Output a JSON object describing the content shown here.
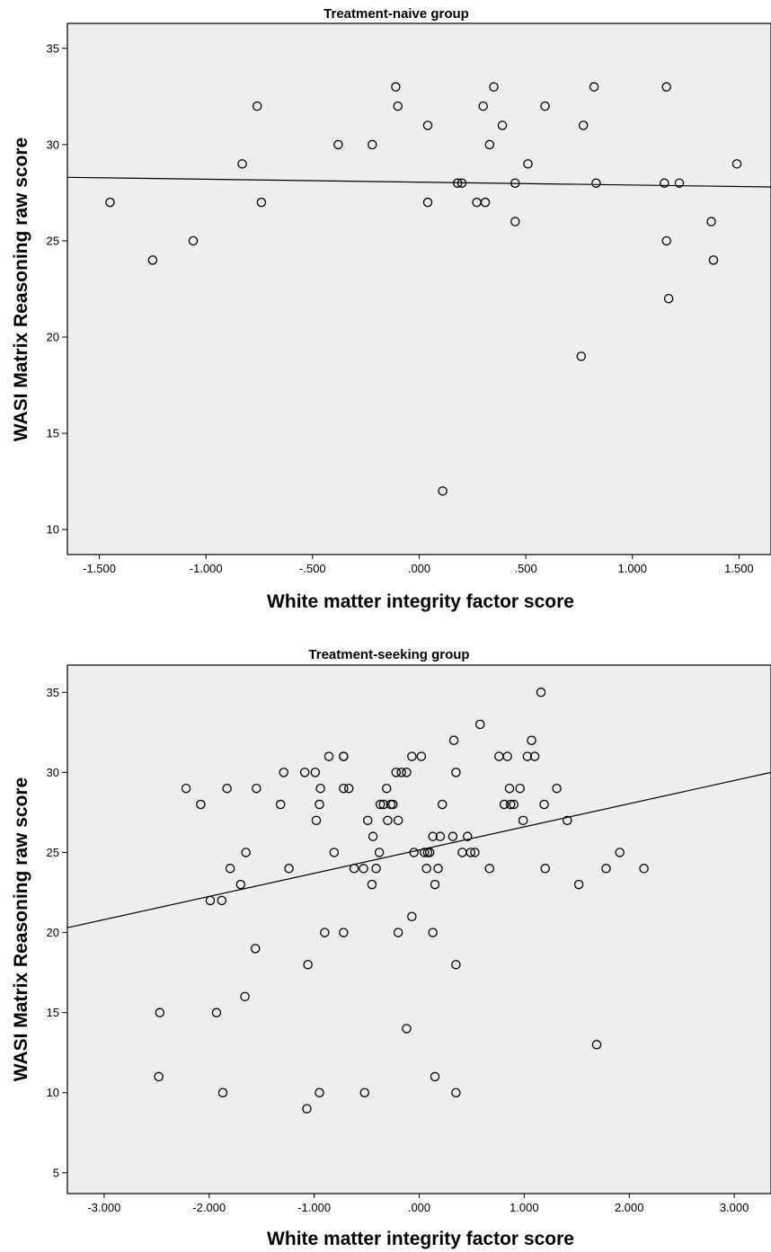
{
  "chart_data": [
    {
      "type": "scatter",
      "title": "Treatment-naive group",
      "xlabel": "White matter integrity factor score",
      "ylabel": "WASI Matrix Reasoning raw score",
      "xlim": [
        -1.65,
        1.65
      ],
      "ylim": [
        8.7,
        36.3
      ],
      "x_ticks": [
        -1.5,
        -1.0,
        -0.5,
        0.0,
        0.5,
        1.0,
        1.5
      ],
      "x_tick_labels": [
        "-1.500",
        "-1.000",
        "-.500",
        ".000",
        ".500",
        "1.000",
        "1.500"
      ],
      "y_ticks": [
        10,
        15,
        20,
        25,
        30,
        35
      ],
      "y_tick_labels": [
        "10",
        "15",
        "20",
        "25",
        "30",
        "35"
      ],
      "fit_line": {
        "x": [
          -1.65,
          1.65
        ],
        "y": [
          28.3,
          27.8
        ]
      },
      "points": [
        [
          -1.45,
          27
        ],
        [
          -1.25,
          24
        ],
        [
          -1.06,
          25
        ],
        [
          -0.83,
          29
        ],
        [
          -0.76,
          32
        ],
        [
          -0.74,
          27
        ],
        [
          -0.38,
          30
        ],
        [
          -0.22,
          30
        ],
        [
          -0.11,
          33
        ],
        [
          -0.1,
          32
        ],
        [
          0.04,
          31
        ],
        [
          0.04,
          27
        ],
        [
          0.11,
          12
        ],
        [
          0.18,
          28
        ],
        [
          0.2,
          28
        ],
        [
          0.27,
          27
        ],
        [
          0.3,
          32
        ],
        [
          0.31,
          27
        ],
        [
          0.33,
          30
        ],
        [
          0.35,
          33
        ],
        [
          0.39,
          31
        ],
        [
          0.45,
          28
        ],
        [
          0.45,
          26
        ],
        [
          0.51,
          29
        ],
        [
          0.59,
          32
        ],
        [
          0.76,
          19
        ],
        [
          0.77,
          31
        ],
        [
          0.82,
          33
        ],
        [
          0.83,
          28
        ],
        [
          1.15,
          28
        ],
        [
          1.16,
          33
        ],
        [
          1.16,
          25
        ],
        [
          1.17,
          22
        ],
        [
          1.22,
          28
        ],
        [
          1.37,
          26
        ],
        [
          1.38,
          24
        ],
        [
          1.49,
          29
        ]
      ]
    },
    {
      "type": "scatter",
      "title": "Treatment-seeking group",
      "xlabel": "White matter integrity factor score",
      "ylabel": "WASI Matrix Reasoning raw score",
      "xlim": [
        -3.35,
        3.35
      ],
      "ylim": [
        3.7,
        36.7
      ],
      "x_ticks": [
        -3.0,
        -2.0,
        -1.0,
        0.0,
        1.0,
        2.0,
        3.0
      ],
      "x_tick_labels": [
        "-3.000",
        "-2.000",
        "-1.000",
        ".000",
        "1.000",
        "2.000",
        "3.000"
      ],
      "y_ticks": [
        5,
        10,
        15,
        20,
        25,
        30,
        35
      ],
      "y_tick_labels": [
        "5",
        "10",
        "15",
        "20",
        "25",
        "30",
        "35"
      ],
      "fit_line": {
        "x": [
          -3.35,
          3.35
        ],
        "y": [
          20.3,
          30.0
        ]
      },
      "points": [
        [
          -2.22,
          29
        ],
        [
          -2.08,
          28
        ],
        [
          -1.99,
          22
        ],
        [
          -1.88,
          22
        ],
        [
          -1.83,
          29
        ],
        [
          -1.8,
          24
        ],
        [
          -1.7,
          23
        ],
        [
          -1.65,
          25
        ],
        [
          -1.55,
          29
        ],
        [
          -1.32,
          28
        ],
        [
          -1.29,
          30
        ],
        [
          -1.24,
          24
        ],
        [
          -1.09,
          30
        ],
        [
          -0.99,
          30
        ],
        [
          -0.98,
          27
        ],
        [
          -0.95,
          28
        ],
        [
          -0.94,
          29
        ],
        [
          -0.86,
          31
        ],
        [
          -0.81,
          25
        ],
        [
          -0.72,
          31
        ],
        [
          -0.72,
          31
        ],
        [
          -0.72,
          29
        ],
        [
          -0.67,
          29
        ],
        [
          -0.62,
          24
        ],
        [
          -0.53,
          24
        ],
        [
          -0.49,
          27
        ],
        [
          -0.45,
          23
        ],
        [
          -0.44,
          26
        ],
        [
          -0.41,
          24
        ],
        [
          -0.38,
          25
        ],
        [
          -0.37,
          28
        ],
        [
          -0.34,
          28
        ],
        [
          -0.31,
          29
        ],
        [
          -0.3,
          27
        ],
        [
          -0.27,
          28
        ],
        [
          -0.25,
          28
        ],
        [
          -0.22,
          30
        ],
        [
          -0.2,
          27
        ],
        [
          -0.17,
          30
        ],
        [
          -0.12,
          30
        ],
        [
          -0.07,
          31
        ],
        [
          -0.05,
          25
        ],
        [
          0.02,
          31
        ],
        [
          0.05,
          25
        ],
        [
          0.07,
          24
        ],
        [
          0.08,
          25
        ],
        [
          0.1,
          25
        ],
        [
          0.13,
          26
        ],
        [
          0.15,
          23
        ],
        [
          0.18,
          24
        ],
        [
          0.2,
          26
        ],
        [
          0.22,
          28
        ],
        [
          0.32,
          26
        ],
        [
          0.33,
          32
        ],
        [
          0.35,
          30
        ],
        [
          0.41,
          25
        ],
        [
          0.46,
          26
        ],
        [
          0.49,
          25
        ],
        [
          0.53,
          25
        ],
        [
          0.58,
          33
        ],
        [
          0.67,
          24
        ],
        [
          0.76,
          31
        ],
        [
          0.81,
          28
        ],
        [
          0.84,
          31
        ],
        [
          0.86,
          29
        ],
        [
          0.87,
          28
        ],
        [
          0.9,
          28
        ],
        [
          0.96,
          29
        ],
        [
          0.99,
          27
        ],
        [
          1.03,
          31
        ],
        [
          1.07,
          32
        ],
        [
          1.1,
          31
        ],
        [
          1.16,
          35
        ],
        [
          1.19,
          28
        ],
        [
          1.2,
          24
        ],
        [
          1.31,
          29
        ],
        [
          1.41,
          27
        ],
        [
          1.52,
          23
        ],
        [
          1.78,
          24
        ],
        [
          1.91,
          25
        ],
        [
          2.14,
          24
        ],
        [
          -0.9,
          20
        ],
        [
          -0.72,
          20
        ],
        [
          -0.2,
          20
        ],
        [
          -0.07,
          21
        ],
        [
          0.13,
          20
        ],
        [
          -1.56,
          19
        ],
        [
          -1.06,
          18
        ],
        [
          0.35,
          18
        ],
        [
          -1.66,
          16
        ],
        [
          -2.47,
          15
        ],
        [
          -1.93,
          15
        ],
        [
          -0.12,
          14
        ],
        [
          1.69,
          13
        ],
        [
          -2.48,
          11
        ],
        [
          0.15,
          11
        ],
        [
          -1.87,
          10
        ],
        [
          -0.95,
          10
        ],
        [
          -0.52,
          10
        ],
        [
          0.35,
          10
        ],
        [
          -1.07,
          9
        ]
      ]
    }
  ]
}
